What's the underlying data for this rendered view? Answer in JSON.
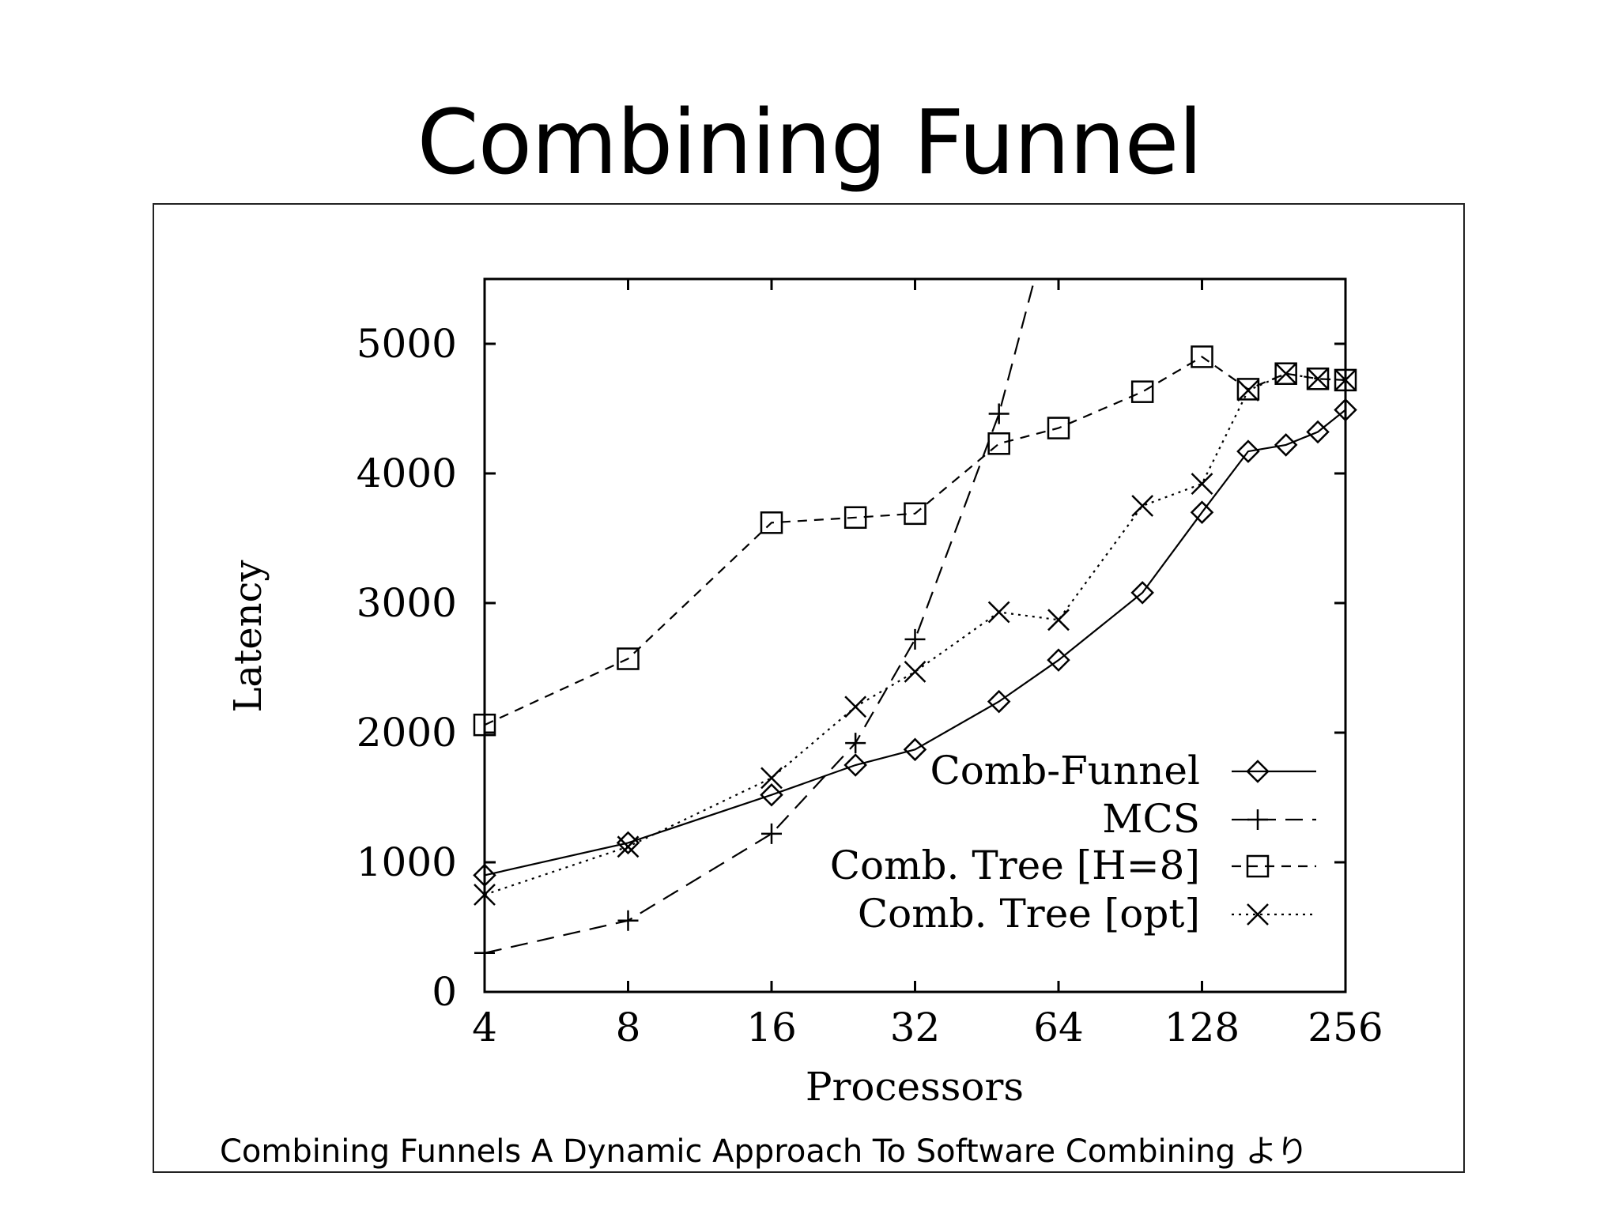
{
  "slide": {
    "title": "Combining Funnel",
    "caption": "Combining Funnels A Dynamic Approach To Software Combining より"
  },
  "chart_data": {
    "type": "line",
    "title": "",
    "xlabel": "Processors",
    "ylabel": "Latency",
    "x_scale": "log2",
    "xlim": [
      4,
      256
    ],
    "ylim": [
      0,
      5500
    ],
    "x_ticks": [
      "4",
      "8",
      "16",
      "32",
      "64",
      "128",
      "256"
    ],
    "y_ticks": [
      "0",
      "1000",
      "2000",
      "3000",
      "4000",
      "5000"
    ],
    "grid": false,
    "legend_position": "right, lower-middle",
    "series": [
      {
        "name": "Comb-Funnel",
        "marker": "diamond",
        "line": "solid",
        "x": [
          4,
          8,
          16,
          24,
          32,
          48,
          64,
          96,
          128,
          160,
          192,
          224,
          256
        ],
        "y": [
          900,
          1150,
          1520,
          1750,
          1870,
          2240,
          2560,
          3080,
          3700,
          4170,
          4220,
          4320,
          4490
        ]
      },
      {
        "name": "MCS",
        "marker": "plus",
        "line": "dashed",
        "x": [
          4,
          8,
          16,
          24,
          32,
          48,
          57
        ],
        "y": [
          300,
          550,
          1220,
          1920,
          2720,
          4460,
          5500
        ]
      },
      {
        "name": "Comb. Tree [H=8]",
        "marker": "square",
        "line": "short-dashed",
        "x": [
          4,
          8,
          16,
          24,
          32,
          48,
          64,
          96,
          128,
          160,
          192,
          224,
          256
        ],
        "y": [
          2060,
          2570,
          3620,
          3660,
          3690,
          4230,
          4350,
          4630,
          4900,
          4650,
          4770,
          4730,
          4720
        ]
      },
      {
        "name": "Comb. Tree [opt]",
        "marker": "cross",
        "line": "dotted",
        "x": [
          4,
          8,
          16,
          24,
          32,
          48,
          64,
          96,
          128,
          160,
          192,
          224,
          256
        ],
        "y": [
          750,
          1120,
          1650,
          2200,
          2470,
          2930,
          2870,
          3750,
          3920,
          4640,
          4770,
          4730,
          4720
        ]
      }
    ]
  }
}
